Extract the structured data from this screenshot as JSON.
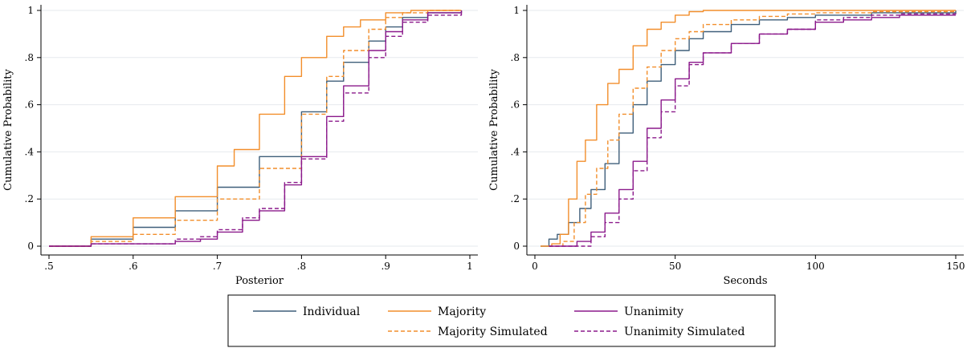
{
  "chart_data": [
    {
      "type": "line",
      "xlabel": "Posterior",
      "ylabel": "Cumulative Probability",
      "xlim": [
        0.5,
        1.0
      ],
      "ylim": [
        0,
        1
      ],
      "xticks": [
        ".5",
        ".6",
        ".7",
        ".8",
        ".9",
        "1"
      ],
      "xtick_values": [
        0.5,
        0.6,
        0.7,
        0.8,
        0.9,
        1.0
      ],
      "yticks": [
        "0",
        ".2",
        ".4",
        ".6",
        ".8",
        "1"
      ],
      "ytick_values": [
        0,
        0.2,
        0.4,
        0.6,
        0.8,
        1.0
      ],
      "grid": true,
      "series": [
        {
          "name": "Individual",
          "color": "#3f5f7a",
          "dash": "solid",
          "x": [
            0.5,
            0.55,
            0.6,
            0.65,
            0.7,
            0.75,
            0.8,
            0.83,
            0.85,
            0.88,
            0.9,
            0.92,
            0.95,
            0.99
          ],
          "y": [
            0.0,
            0.03,
            0.08,
            0.15,
            0.25,
            0.38,
            0.57,
            0.7,
            0.78,
            0.87,
            0.93,
            0.97,
            0.99,
            1.0
          ]
        },
        {
          "name": "Majority",
          "color": "#f28e2b",
          "dash": "solid",
          "x": [
            0.5,
            0.55,
            0.6,
            0.65,
            0.7,
            0.72,
            0.75,
            0.78,
            0.8,
            0.83,
            0.85,
            0.87,
            0.9,
            0.93,
            0.99
          ],
          "y": [
            0.0,
            0.04,
            0.12,
            0.21,
            0.34,
            0.41,
            0.56,
            0.72,
            0.8,
            0.89,
            0.93,
            0.96,
            0.99,
            1.0,
            1.0
          ]
        },
        {
          "name": "Majority Simulated",
          "color": "#f28e2b",
          "dash": "dashed",
          "x": [
            0.5,
            0.55,
            0.6,
            0.65,
            0.7,
            0.75,
            0.8,
            0.83,
            0.85,
            0.88,
            0.9,
            0.92,
            0.95,
            0.99
          ],
          "y": [
            0.0,
            0.02,
            0.05,
            0.11,
            0.2,
            0.33,
            0.56,
            0.72,
            0.83,
            0.92,
            0.97,
            0.99,
            1.0,
            1.0
          ]
        },
        {
          "name": "Unanimity",
          "color": "#8b1a8b",
          "dash": "solid",
          "x": [
            0.5,
            0.55,
            0.6,
            0.65,
            0.68,
            0.7,
            0.73,
            0.75,
            0.78,
            0.8,
            0.83,
            0.85,
            0.88,
            0.9,
            0.92,
            0.95,
            0.99
          ],
          "y": [
            0.0,
            0.01,
            0.01,
            0.02,
            0.03,
            0.06,
            0.11,
            0.15,
            0.26,
            0.38,
            0.55,
            0.68,
            0.83,
            0.91,
            0.96,
            0.99,
            1.0
          ]
        },
        {
          "name": "Unanimity Simulated",
          "color": "#8b1a8b",
          "dash": "dashed",
          "x": [
            0.5,
            0.55,
            0.6,
            0.65,
            0.68,
            0.7,
            0.73,
            0.75,
            0.78,
            0.8,
            0.83,
            0.85,
            0.88,
            0.9,
            0.92,
            0.95,
            0.99
          ],
          "y": [
            0.0,
            0.01,
            0.01,
            0.03,
            0.04,
            0.07,
            0.12,
            0.16,
            0.27,
            0.37,
            0.53,
            0.65,
            0.8,
            0.89,
            0.95,
            0.98,
            1.0
          ]
        }
      ]
    },
    {
      "type": "line",
      "xlabel": "Seconds",
      "ylabel": "Cumulative Probability",
      "xlim": [
        0,
        150
      ],
      "ylim": [
        0,
        1
      ],
      "xticks": [
        "0",
        "50",
        "100",
        "150"
      ],
      "xtick_values": [
        0,
        50,
        100,
        150
      ],
      "yticks": [
        "0",
        ".2",
        ".4",
        ".6",
        ".8",
        "1"
      ],
      "ytick_values": [
        0,
        0.2,
        0.4,
        0.6,
        0.8,
        1.0
      ],
      "grid": true,
      "series": [
        {
          "name": "Individual",
          "color": "#3f5f7a",
          "dash": "solid",
          "x": [
            2,
            5,
            8,
            12,
            16,
            20,
            25,
            30,
            35,
            40,
            45,
            50,
            55,
            60,
            70,
            80,
            90,
            100,
            120,
            150
          ],
          "y": [
            0.0,
            0.03,
            0.05,
            0.1,
            0.16,
            0.24,
            0.35,
            0.48,
            0.6,
            0.7,
            0.77,
            0.83,
            0.88,
            0.91,
            0.94,
            0.96,
            0.97,
            0.98,
            0.99,
            1.0
          ]
        },
        {
          "name": "Majority",
          "color": "#f28e2b",
          "dash": "solid",
          "x": [
            2,
            6,
            9,
            12,
            15,
            18,
            22,
            26,
            30,
            35,
            40,
            45,
            50,
            55,
            60,
            150
          ],
          "y": [
            0.0,
            0.01,
            0.05,
            0.2,
            0.36,
            0.45,
            0.6,
            0.69,
            0.75,
            0.85,
            0.92,
            0.95,
            0.98,
            0.995,
            1.0,
            1.0
          ]
        },
        {
          "name": "Majority Simulated",
          "color": "#f28e2b",
          "dash": "dashed",
          "x": [
            5,
            8,
            10,
            14,
            18,
            22,
            26,
            30,
            35,
            40,
            45,
            50,
            55,
            60,
            70,
            80,
            90,
            100,
            120,
            150
          ],
          "y": [
            0.0,
            0.0,
            0.02,
            0.1,
            0.22,
            0.33,
            0.45,
            0.56,
            0.67,
            0.76,
            0.83,
            0.88,
            0.91,
            0.94,
            0.96,
            0.975,
            0.985,
            0.99,
            0.995,
            1.0
          ]
        },
        {
          "name": "Unanimity",
          "color": "#8b1a8b",
          "dash": "solid",
          "x": [
            5,
            15,
            20,
            25,
            30,
            35,
            40,
            45,
            50,
            55,
            60,
            70,
            80,
            90,
            100,
            110,
            120,
            130,
            150
          ],
          "y": [
            0.0,
            0.02,
            0.06,
            0.14,
            0.24,
            0.36,
            0.5,
            0.62,
            0.71,
            0.78,
            0.82,
            0.86,
            0.9,
            0.92,
            0.95,
            0.96,
            0.97,
            0.98,
            0.98
          ]
        },
        {
          "name": "Unanimity Simulated",
          "color": "#8b1a8b",
          "dash": "dashed",
          "x": [
            5,
            15,
            20,
            25,
            30,
            35,
            40,
            45,
            50,
            55,
            60,
            70,
            80,
            90,
            100,
            110,
            120,
            130,
            150
          ],
          "y": [
            0.0,
            0.0,
            0.04,
            0.1,
            0.2,
            0.32,
            0.46,
            0.57,
            0.68,
            0.77,
            0.82,
            0.86,
            0.9,
            0.92,
            0.96,
            0.97,
            0.98,
            0.985,
            0.99
          ]
        }
      ]
    }
  ],
  "legend": {
    "placement": "bottom",
    "entries": [
      {
        "label": "Individual",
        "color": "#3f5f7a",
        "dash": "solid"
      },
      {
        "label": "Majority",
        "color": "#f28e2b",
        "dash": "solid"
      },
      {
        "label": "Unanimity",
        "color": "#8b1a8b",
        "dash": "solid"
      },
      {
        "label": "Majority Simulated",
        "color": "#f28e2b",
        "dash": "dashed"
      },
      {
        "label": "Unanimity Simulated",
        "color": "#8b1a8b",
        "dash": "dashed"
      }
    ]
  }
}
